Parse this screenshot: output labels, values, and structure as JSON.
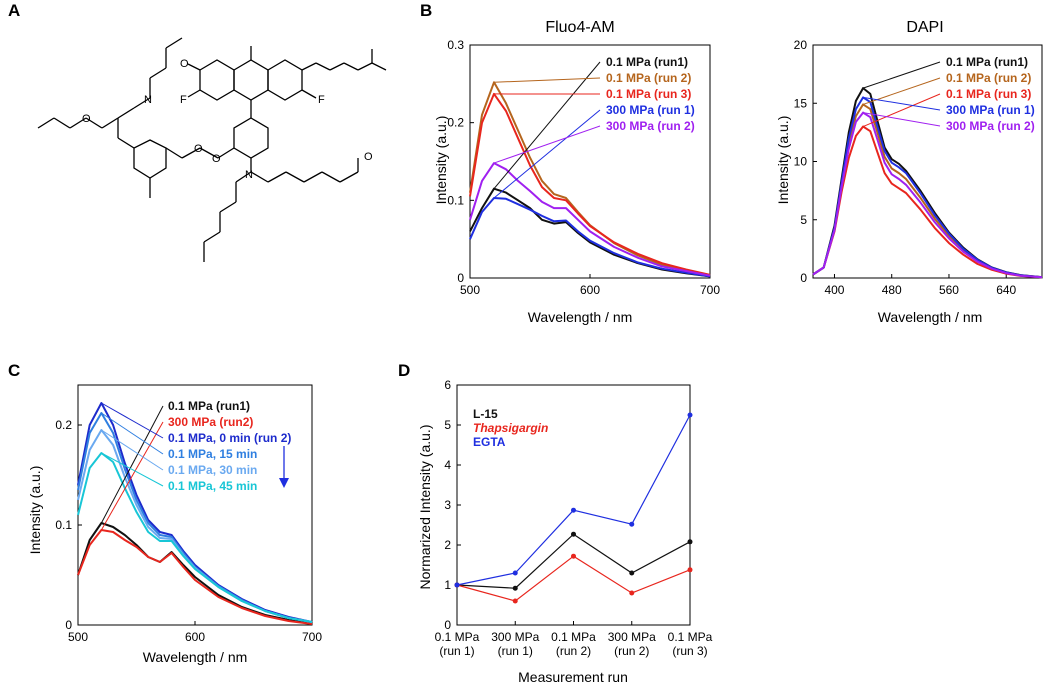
{
  "panels": {
    "A": "A",
    "B": "B",
    "C": "C",
    "D": "D"
  },
  "molecule": {
    "name": "Fluo4-AM structure",
    "atoms": {
      "O": "O",
      "N": "N",
      "F": "F"
    }
  },
  "colors": {
    "black": "#111111",
    "brown": "#b5651d",
    "red": "#e8261e",
    "blue": "#1f2fe0",
    "purple": "#a020f0",
    "dkblue": "#1d2bcc",
    "midblue": "#2f7fe0",
    "ltblue": "#6aa9f0",
    "cyan": "#18c6d6"
  },
  "chart_data": [
    {
      "id": "fluo4",
      "type": "line",
      "title": "Fluo4-AM",
      "xlabel": "Wavelength / nm",
      "ylabel": "Intensity (a.u.)",
      "xlim": [
        500,
        700
      ],
      "ylim": [
        0,
        0.3
      ],
      "xticks": [
        "500",
        "600",
        "700"
      ],
      "yticks": [
        "0",
        "0.1",
        "0.2",
        "0.3"
      ],
      "x": [
        500,
        510,
        520,
        530,
        540,
        550,
        560,
        570,
        580,
        590,
        600,
        620,
        640,
        660,
        680,
        700
      ],
      "series": [
        {
          "name": "0.1 MPa (run1)",
          "color": "#111111",
          "values": [
            0.06,
            0.09,
            0.115,
            0.11,
            0.1,
            0.09,
            0.075,
            0.07,
            0.072,
            0.058,
            0.046,
            0.03,
            0.019,
            0.011,
            0.006,
            0.002
          ]
        },
        {
          "name": "0.1 MPa (run 2)",
          "color": "#b5651d",
          "values": [
            0.11,
            0.21,
            0.252,
            0.225,
            0.19,
            0.155,
            0.125,
            0.108,
            0.103,
            0.085,
            0.068,
            0.045,
            0.029,
            0.017,
            0.009,
            0.003
          ]
        },
        {
          "name": "0.1 MPa (run 3)",
          "color": "#e8261e",
          "values": [
            0.105,
            0.2,
            0.237,
            0.215,
            0.18,
            0.145,
            0.117,
            0.103,
            0.1,
            0.083,
            0.067,
            0.046,
            0.031,
            0.019,
            0.011,
            0.004
          ]
        },
        {
          "name": "300 MPa (run 1)",
          "color": "#1f2fe0",
          "values": [
            0.05,
            0.085,
            0.103,
            0.102,
            0.095,
            0.088,
            0.08,
            0.073,
            0.074,
            0.06,
            0.048,
            0.032,
            0.02,
            0.012,
            0.007,
            0.002
          ]
        },
        {
          "name": "300 MPa (run 2)",
          "color": "#a020f0",
          "values": [
            0.075,
            0.125,
            0.148,
            0.14,
            0.125,
            0.112,
            0.098,
            0.09,
            0.09,
            0.075,
            0.06,
            0.04,
            0.026,
            0.015,
            0.009,
            0.003
          ]
        }
      ]
    },
    {
      "id": "dapi",
      "type": "line",
      "title": "DAPI",
      "xlabel": "Wavelength / nm",
      "ylabel": "Intensity (a.u.)",
      "xlim": [
        370,
        690
      ],
      "ylim": [
        0,
        20
      ],
      "xticks": [
        "400",
        "480",
        "560",
        "640"
      ],
      "xtick_values": [
        400,
        480,
        560,
        640
      ],
      "yticks": [
        "0",
        "5",
        "10",
        "15",
        "20"
      ],
      "x": [
        370,
        385,
        400,
        410,
        420,
        430,
        440,
        450,
        460,
        470,
        480,
        490,
        500,
        520,
        540,
        560,
        580,
        600,
        620,
        640,
        660,
        690
      ],
      "series": [
        {
          "name": "0.1 MPa (run1)",
          "color": "#111111",
          "values": [
            0.3,
            0.9,
            4.5,
            8.5,
            12.5,
            15.2,
            16.3,
            15.8,
            13.5,
            11.2,
            10.2,
            9.8,
            9.2,
            7.5,
            5.6,
            3.9,
            2.6,
            1.6,
            0.9,
            0.5,
            0.25,
            0.08
          ]
        },
        {
          "name": "0.1 MPa (run 2)",
          "color": "#b5651d",
          "values": [
            0.3,
            0.9,
            4.2,
            8.0,
            11.5,
            13.9,
            14.9,
            14.5,
            12.5,
            10.4,
            9.4,
            9.0,
            8.5,
            6.9,
            5.1,
            3.6,
            2.4,
            1.5,
            0.85,
            0.45,
            0.22,
            0.07
          ]
        },
        {
          "name": "0.1 MPa (run 3)",
          "color": "#e8261e",
          "values": [
            0.3,
            0.9,
            4.0,
            7.4,
            10.3,
            12.2,
            13.0,
            12.6,
            10.8,
            9.0,
            8.1,
            7.7,
            7.3,
            5.9,
            4.3,
            3.0,
            2.0,
            1.2,
            0.7,
            0.38,
            0.18,
            0.06
          ]
        },
        {
          "name": "300 MPa (run 1)",
          "color": "#1f2fe0",
          "values": [
            0.3,
            0.9,
            4.3,
            8.2,
            12.0,
            14.5,
            15.5,
            15.1,
            13.0,
            10.9,
            9.9,
            9.5,
            9.0,
            7.3,
            5.4,
            3.8,
            2.5,
            1.55,
            0.88,
            0.48,
            0.23,
            0.07
          ]
        },
        {
          "name": "300 MPa (run 2)",
          "color": "#a020f0",
          "values": [
            0.3,
            0.9,
            4.1,
            7.8,
            11.1,
            13.4,
            14.2,
            13.8,
            11.9,
            9.9,
            8.9,
            8.5,
            8.0,
            6.5,
            4.8,
            3.4,
            2.25,
            1.4,
            0.8,
            0.42,
            0.2,
            0.06
          ]
        }
      ]
    },
    {
      "id": "time",
      "type": "line",
      "title": "",
      "xlabel": "Wavelength / nm",
      "ylabel": "Intensity (a.u.)",
      "xlim": [
        500,
        700
      ],
      "ylim": [
        0,
        0.24
      ],
      "xticks": [
        "500",
        "600",
        "700"
      ],
      "yticks": [
        "0",
        "0.1",
        "0.2"
      ],
      "x": [
        500,
        510,
        520,
        530,
        540,
        550,
        560,
        570,
        580,
        590,
        600,
        620,
        640,
        660,
        680,
        700
      ],
      "arrow_color": "#1f2fe0",
      "series": [
        {
          "name": "0.1 MPa (run1)",
          "color": "#111111",
          "values": [
            0.05,
            0.085,
            0.102,
            0.098,
            0.09,
            0.08,
            0.068,
            0.063,
            0.073,
            0.06,
            0.048,
            0.03,
            0.018,
            0.01,
            0.005,
            0.002
          ]
        },
        {
          "name": "300 MPa (run2)",
          "color": "#e8261e",
          "values": [
            0.05,
            0.08,
            0.095,
            0.093,
            0.085,
            0.078,
            0.068,
            0.063,
            0.072,
            0.058,
            0.045,
            0.028,
            0.017,
            0.009,
            0.004,
            0.001
          ]
        },
        {
          "name": "0.1 MPa, 0 min (run 2)",
          "color": "#1d2bcc",
          "values": [
            0.14,
            0.2,
            0.222,
            0.2,
            0.162,
            0.13,
            0.105,
            0.093,
            0.09,
            0.074,
            0.06,
            0.04,
            0.026,
            0.015,
            0.008,
            0.003
          ]
        },
        {
          "name": "0.1 MPa, 15 min",
          "color": "#2f7fe0",
          "values": [
            0.135,
            0.192,
            0.212,
            0.192,
            0.156,
            0.125,
            0.102,
            0.09,
            0.088,
            0.072,
            0.058,
            0.039,
            0.025,
            0.014,
            0.007,
            0.003
          ]
        },
        {
          "name": "0.1 MPa, 30 min",
          "color": "#6aa9f0",
          "values": [
            0.125,
            0.175,
            0.195,
            0.18,
            0.148,
            0.12,
            0.098,
            0.087,
            0.086,
            0.07,
            0.057,
            0.038,
            0.024,
            0.014,
            0.007,
            0.003
          ]
        },
        {
          "name": "0.1 MPa, 45 min",
          "color": "#18c6d6",
          "values": [
            0.11,
            0.157,
            0.172,
            0.163,
            0.137,
            0.113,
            0.093,
            0.084,
            0.084,
            0.069,
            0.056,
            0.038,
            0.024,
            0.014,
            0.007,
            0.003
          ]
        }
      ]
    },
    {
      "id": "normalized",
      "type": "line",
      "title": "",
      "xlabel": "Measurement run",
      "ylabel": "Normarized Intensity (a.u.)",
      "ylim": [
        0,
        6
      ],
      "yticks": [
        "0",
        "1",
        "2",
        "3",
        "4",
        "5",
        "6"
      ],
      "categories": [
        [
          "0.1 MPa",
          "(run 1)"
        ],
        [
          "300 MPa",
          "(run 1)"
        ],
        [
          "0.1 MPa",
          "(run 2)"
        ],
        [
          "300 MPa",
          "(run 2)"
        ],
        [
          "0.1 MPa",
          "(run 3)"
        ]
      ],
      "series": [
        {
          "name": "L-15",
          "color": "#111111",
          "italic": false,
          "values": [
            1.0,
            0.92,
            2.27,
            1.3,
            2.08
          ]
        },
        {
          "name": "Thapsigargin",
          "color": "#e8261e",
          "italic": true,
          "values": [
            1.0,
            0.6,
            1.72,
            0.8,
            1.38
          ]
        },
        {
          "name": "EGTA",
          "color": "#1f2fe0",
          "italic": false,
          "values": [
            1.0,
            1.3,
            2.87,
            2.52,
            5.25
          ]
        }
      ]
    }
  ]
}
